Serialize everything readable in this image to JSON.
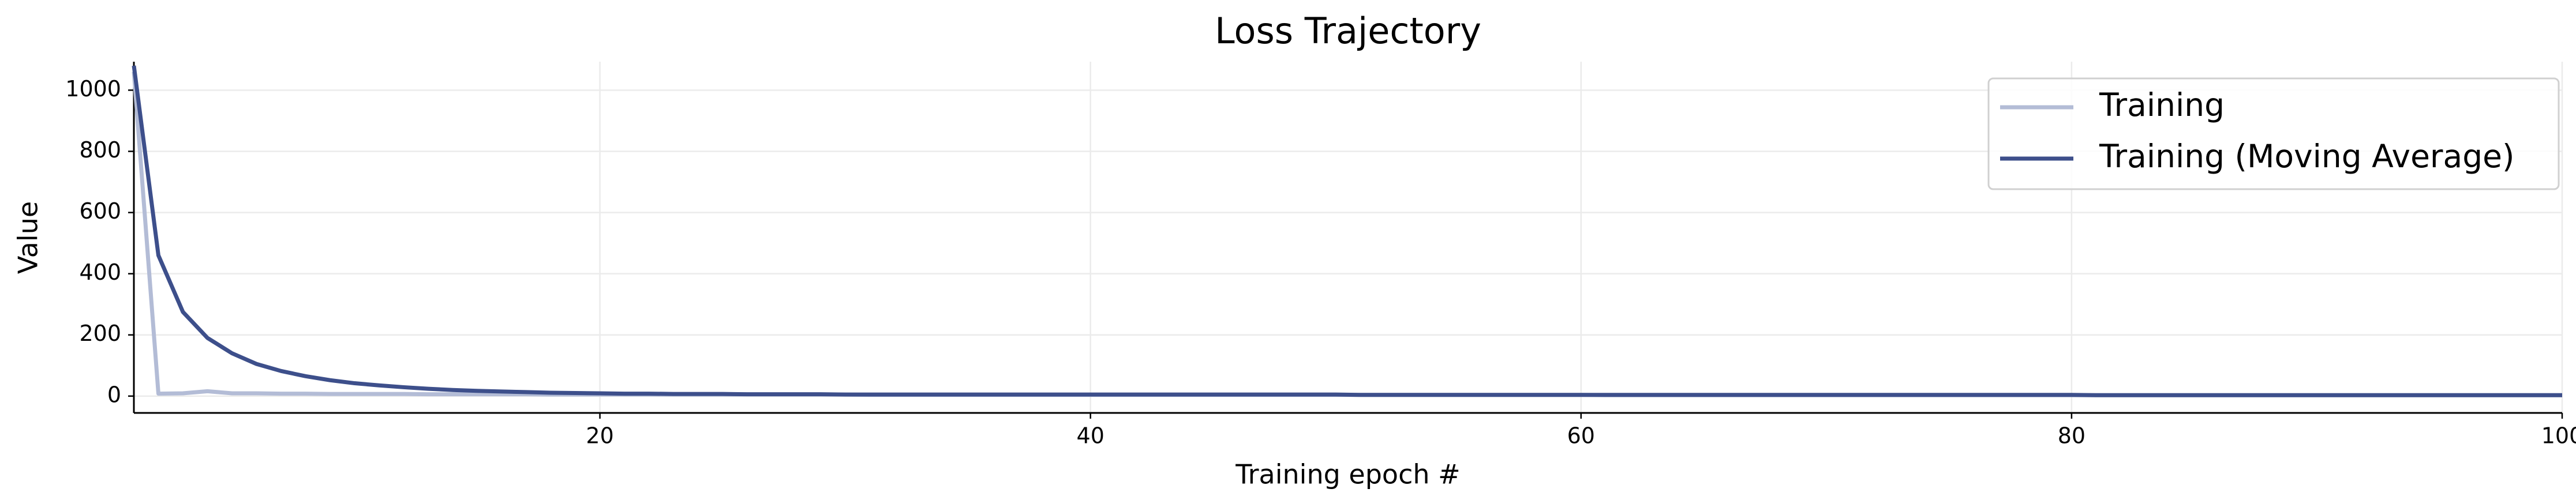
{
  "chart_data": {
    "type": "line",
    "title": "Loss Trajectory",
    "x_label": "Training epoch #",
    "y_label": "Value",
    "x": [
      1,
      2,
      3,
      4,
      5,
      6,
      7,
      8,
      9,
      10,
      11,
      12,
      13,
      14,
      15,
      16,
      17,
      18,
      19,
      20,
      21,
      22,
      23,
      24,
      25,
      26,
      27,
      28,
      29,
      30,
      31,
      32,
      33,
      34,
      35,
      36,
      37,
      38,
      39,
      40,
      41,
      42,
      43,
      44,
      45,
      46,
      47,
      48,
      49,
      50,
      51,
      52,
      53,
      54,
      55,
      56,
      57,
      58,
      59,
      60,
      61,
      62,
      63,
      64,
      65,
      66,
      67,
      68,
      69,
      70,
      71,
      72,
      73,
      74,
      75,
      76,
      77,
      78,
      79,
      80,
      81,
      82,
      83,
      84,
      85,
      86,
      87,
      88,
      89,
      90,
      91,
      92,
      93,
      94,
      95,
      96,
      97,
      98,
      99,
      100
    ],
    "series": [
      {
        "name": "Training",
        "color": "#b3bcd6",
        "values": [
          1060,
          8,
          9,
          16,
          9,
          9,
          8,
          8,
          7,
          7,
          7,
          7,
          6,
          6,
          6,
          6,
          6,
          5,
          5,
          5,
          5,
          5,
          5,
          5,
          5,
          5,
          5,
          5,
          5,
          5,
          4,
          4,
          4,
          4,
          4,
          4,
          4,
          4,
          4,
          4,
          4,
          4,
          4,
          4,
          4,
          4,
          4,
          4,
          4,
          4,
          4,
          4,
          4,
          4,
          4,
          4,
          4,
          4,
          4,
          4,
          3,
          3,
          3,
          3,
          3,
          3,
          3,
          3,
          3,
          3,
          3,
          3,
          3,
          3,
          3,
          3,
          3,
          3,
          3,
          3,
          3,
          3,
          3,
          3,
          3,
          3,
          3,
          3,
          3,
          3,
          3,
          3,
          3,
          3,
          3,
          3,
          3,
          3,
          3,
          3
        ]
      },
      {
        "name": "Training (Moving Average)",
        "color": "#3d4f8b",
        "values": [
          1080,
          460,
          275,
          190,
          140,
          105,
          82,
          65,
          52,
          42,
          35,
          29,
          24,
          20,
          17,
          15,
          13,
          11,
          10,
          9,
          8,
          8,
          7,
          7,
          7,
          6,
          6,
          6,
          6,
          5,
          5,
          5,
          5,
          5,
          5,
          5,
          5,
          5,
          5,
          5,
          5,
          5,
          5,
          5,
          5,
          5,
          5,
          5,
          5,
          5,
          4,
          4,
          4,
          4,
          4,
          4,
          4,
          4,
          4,
          4,
          4,
          4,
          4,
          4,
          4,
          4,
          4,
          4,
          4,
          4,
          4,
          4,
          4,
          4,
          4,
          4,
          4,
          4,
          4,
          4,
          3,
          3,
          3,
          3,
          3,
          3,
          3,
          3,
          3,
          3,
          3,
          3,
          3,
          3,
          3,
          3,
          3,
          3,
          3,
          3
        ]
      }
    ],
    "xlim": [
      1,
      100
    ],
    "xticks": [
      20,
      40,
      60,
      80,
      100
    ],
    "ylim": [
      -55,
      1093
    ],
    "yticks": [
      0,
      200,
      400,
      600,
      800,
      1000
    ],
    "grid": true,
    "legend": "upper right"
  }
}
